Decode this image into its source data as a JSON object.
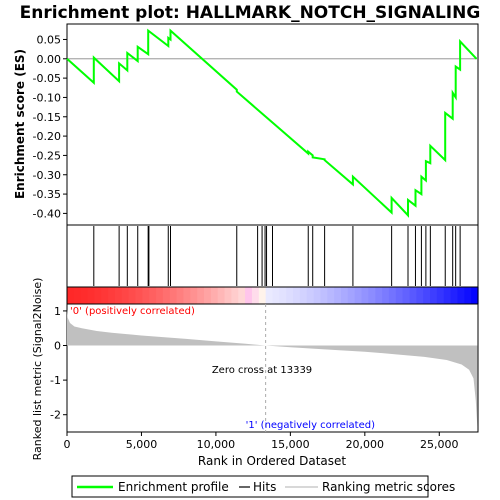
{
  "title": "Enrichment plot: HALLMARK_NOTCH_SIGNALING",
  "chart_data": {
    "type": "line",
    "title": "Enrichment plot: HALLMARK_NOTCH_SIGNALING",
    "n_genes": 27600,
    "es_panel": {
      "ylabel": "Enrichment score (ES)",
      "ylim": [
        -0.43,
        0.09
      ],
      "yticks": [
        0.05,
        0.0,
        -0.05,
        -0.1,
        -0.15,
        -0.2,
        -0.25,
        -0.3,
        -0.35,
        -0.4
      ],
      "ytick_labels": [
        "0.05",
        "0.00",
        "-0.05",
        "-0.10",
        "-0.15",
        "-0.20",
        "-0.25",
        "-0.30",
        "-0.35",
        "-0.40"
      ],
      "series": [
        {
          "name": "Enrichment profile",
          "color": "#00ff00",
          "x": [
            0,
            1800,
            1800,
            3500,
            3500,
            4050,
            4050,
            4750,
            4750,
            5450,
            5450,
            6800,
            6800,
            6950,
            6950,
            11400,
            11400,
            16200,
            16200,
            16500,
            16500,
            17300,
            17300,
            19200,
            19200,
            21800,
            21800,
            22900,
            22900,
            23400,
            23400,
            23800,
            23800,
            24100,
            24100,
            24400,
            24400,
            25400,
            25400,
            25900,
            25900,
            26100,
            26100,
            26400,
            26400,
            27500
          ],
          "y": [
            0.0,
            -0.062,
            0.003,
            -0.058,
            -0.012,
            -0.03,
            0.015,
            -0.006,
            0.031,
            0.012,
            0.073,
            0.033,
            0.054,
            0.05,
            0.073,
            -0.08,
            -0.085,
            -0.245,
            -0.24,
            -0.25,
            -0.255,
            -0.26,
            -0.262,
            -0.325,
            -0.305,
            -0.398,
            -0.36,
            -0.405,
            -0.365,
            -0.38,
            -0.34,
            -0.35,
            -0.305,
            -0.315,
            -0.265,
            -0.27,
            -0.225,
            -0.262,
            -0.14,
            -0.155,
            -0.088,
            -0.1,
            -0.02,
            -0.028,
            0.045,
            0.0
          ]
        }
      ]
    },
    "hits": [
      1800,
      3500,
      4050,
      4750,
      5450,
      5500,
      6800,
      6950,
      11400,
      12800,
      13100,
      13300,
      13400,
      13800,
      16200,
      16500,
      17300,
      19200,
      21800,
      22900,
      23400,
      23800,
      24100,
      24400,
      25400,
      25900,
      26100,
      26400
    ],
    "rank_panel": {
      "ylabel": "Ranked list metric (Signal2Noise)",
      "xlabel": "Rank in Ordered Dataset",
      "ylim": [
        -2.5,
        1.2
      ],
      "yticks": [
        1,
        0,
        -1,
        -2
      ],
      "ytick_labels": [
        "1",
        "0",
        "-1",
        "-2"
      ],
      "xticks": [
        0,
        5000,
        10000,
        15000,
        20000,
        25000
      ],
      "xtick_labels": [
        "0",
        "5,000",
        "10,000",
        "15,000",
        "20,000",
        "25,000"
      ],
      "metric_profile": {
        "x": [
          0,
          50,
          200,
          500,
          1000,
          2000,
          3000,
          5000,
          8000,
          10000,
          12000,
          13339,
          15000,
          18000,
          20000,
          22000,
          24000,
          25500,
          26500,
          27000,
          27300,
          27450,
          27550
        ],
        "y": [
          1.05,
          0.8,
          0.65,
          0.55,
          0.5,
          0.42,
          0.37,
          0.29,
          0.19,
          0.12,
          0.05,
          0.0,
          -0.05,
          -0.13,
          -0.18,
          -0.25,
          -0.33,
          -0.42,
          -0.55,
          -0.7,
          -0.95,
          -1.6,
          -2.35
        ]
      },
      "zero_cross_label": "Zero cross at 13339",
      "zero_cross_rank": 13339,
      "positive_label": "'0' (positively correlated)",
      "negative_label": "'1' (negatively correlated)",
      "positive_color": "#ff0000",
      "negative_color": "#0000ff"
    },
    "legend": {
      "placement": "bottom",
      "entries": [
        {
          "label": "Enrichment profile",
          "color": "#00ff00"
        },
        {
          "label": "Hits",
          "color": "#000000"
        },
        {
          "label": "Ranking metric scores",
          "color": "#c0c0c0"
        }
      ]
    }
  }
}
